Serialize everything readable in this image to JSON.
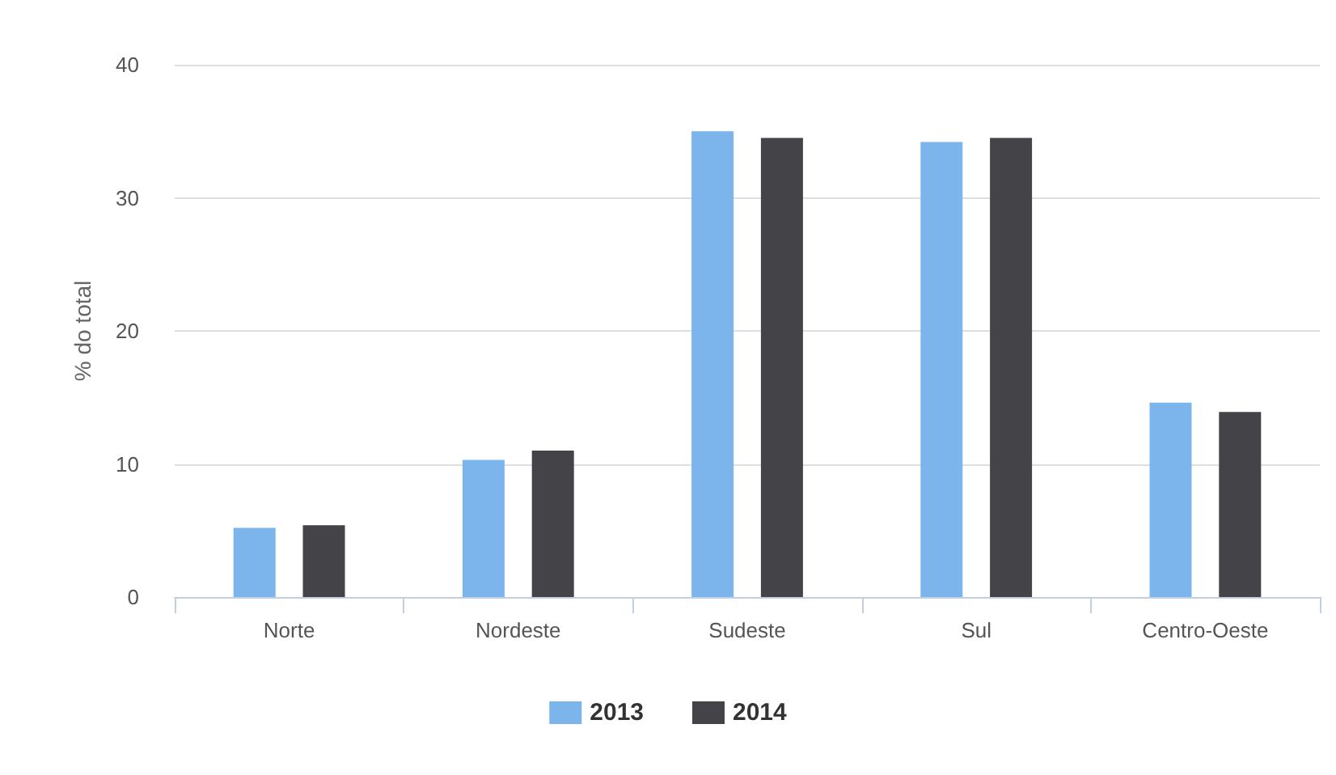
{
  "chart_data": {
    "type": "bar",
    "ylabel": "% do total",
    "categories": [
      "Norte",
      "Nordeste",
      "Sudeste",
      "Sul",
      "Centro-Oeste"
    ],
    "series": [
      {
        "name": "2013",
        "color": "#7cb5ec",
        "values": [
          5.2,
          10.3,
          35.0,
          34.2,
          14.6
        ]
      },
      {
        "name": "2014",
        "color": "#434348",
        "values": [
          5.4,
          11.0,
          34.5,
          34.5,
          13.9
        ]
      }
    ],
    "ylim": [
      0,
      40
    ],
    "yticks": [
      0,
      10,
      20,
      30,
      40
    ],
    "grid": "y",
    "legend": "bottom"
  }
}
